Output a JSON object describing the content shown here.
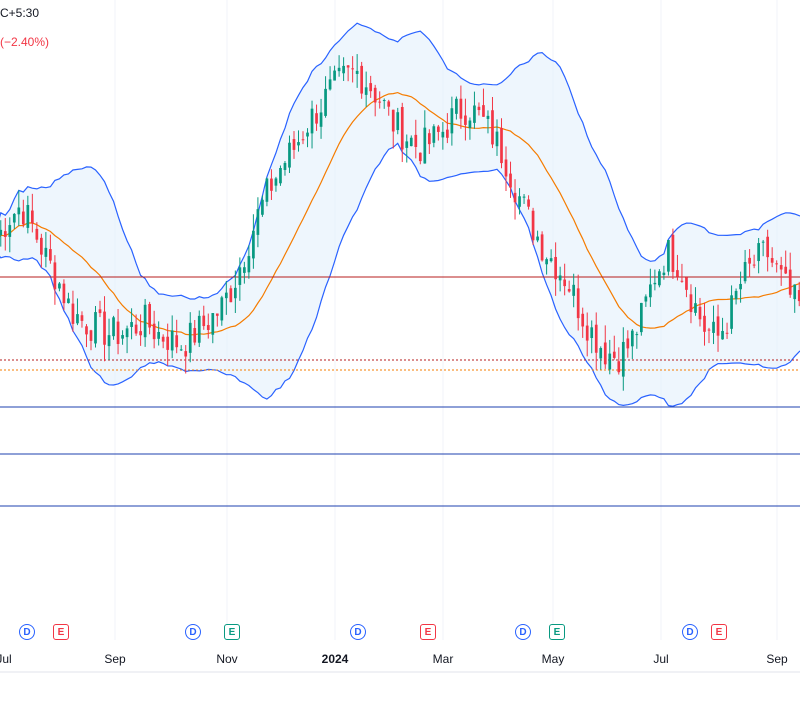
{
  "header": {
    "timezone_fragment": "C+5:30",
    "change_fragment": "(−2.40%)"
  },
  "colors": {
    "up": "#089981",
    "down": "#f23645",
    "band_line": "#2962ff",
    "band_fill": "#e3f0fb",
    "basis": "#f57c00",
    "level_red": "#b71c1c",
    "level_blue": "#1e40af"
  },
  "chart_data": {
    "type": "candlestick",
    "indicator": "Bollinger Bands",
    "x_axis_labels": [
      {
        "text": "Jul",
        "bold": false
      },
      {
        "text": "Sep",
        "bold": false
      },
      {
        "text": "Nov",
        "bold": false
      },
      {
        "text": "2024",
        "bold": true
      },
      {
        "text": "Mar",
        "bold": false
      },
      {
        "text": "May",
        "bold": false
      },
      {
        "text": "Jul",
        "bold": false
      },
      {
        "text": "Sep",
        "bold": false
      }
    ],
    "events": [
      {
        "type": "dividend",
        "label": "D"
      },
      {
        "type": "earnings",
        "label": "E",
        "positive": false
      },
      {
        "type": "dividend",
        "label": "D"
      },
      {
        "type": "earnings",
        "label": "E",
        "positive": true
      },
      {
        "type": "dividend",
        "label": "D"
      },
      {
        "type": "earnings",
        "label": "E",
        "positive": false
      },
      {
        "type": "dividend",
        "label": "D"
      },
      {
        "type": "earnings",
        "label": "E",
        "positive": true
      },
      {
        "type": "dividend",
        "label": "D"
      },
      {
        "type": "earnings",
        "label": "E",
        "positive": false
      }
    ],
    "price_path": [
      62,
      66,
      68,
      64,
      59,
      55,
      50,
      48,
      47,
      46,
      46,
      47,
      48,
      46,
      45,
      44,
      46,
      48,
      50,
      54,
      60,
      66,
      71,
      75,
      78,
      82,
      85,
      88,
      90,
      91,
      89,
      86,
      82,
      80,
      78,
      79,
      81,
      84,
      85,
      83,
      80,
      76,
      70,
      65,
      61,
      58,
      55,
      50,
      46,
      43,
      42,
      44,
      49,
      56,
      60,
      58,
      52,
      47,
      45,
      49,
      55,
      58,
      60,
      56,
      52,
      50
    ]
  }
}
